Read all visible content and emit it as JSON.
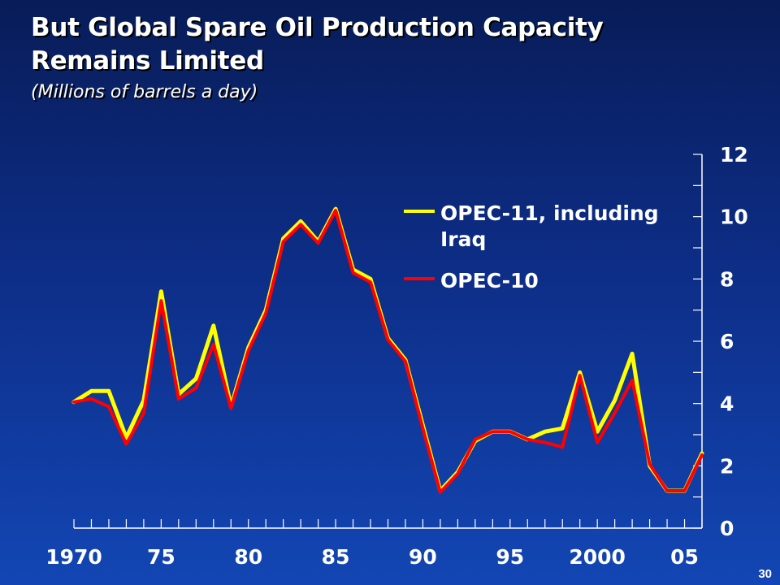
{
  "slide": {
    "title_line1": "But Global Spare Oil Production Capacity",
    "title_line2": "Remains Limited",
    "subtitle": "(Millions of barrels a day)",
    "page_number": "30"
  },
  "chart_data": {
    "type": "line",
    "title": "But Global Spare Oil Production Capacity Remains Limited",
    "subtitle": "(Millions of barrels a day)",
    "x": [
      1970,
      1971,
      1972,
      1973,
      1974,
      1975,
      1976,
      1977,
      1978,
      1979,
      1980,
      1981,
      1982,
      1983,
      1984,
      1985,
      1986,
      1987,
      1988,
      1989,
      1990,
      1991,
      1992,
      1993,
      1994,
      1995,
      1996,
      1997,
      1998,
      1999,
      2000,
      2001,
      2002,
      2003,
      2004,
      2005,
      2006
    ],
    "series": [
      {
        "name": "OPEC-11, including Iraq",
        "color": "#ffff00",
        "values": [
          4.05,
          4.4,
          4.4,
          2.9,
          4.1,
          7.6,
          4.3,
          4.8,
          6.5,
          3.9,
          5.8,
          7.0,
          9.3,
          9.85,
          9.2,
          10.25,
          8.3,
          8.0,
          6.1,
          5.4,
          3.3,
          1.2,
          1.8,
          2.8,
          3.1,
          3.1,
          2.85,
          3.1,
          3.2,
          5.0,
          3.1,
          4.1,
          5.6,
          2.0,
          1.2,
          1.2,
          2.4
        ]
      },
      {
        "name": "OPEC-10",
        "color": "#ff0000",
        "values": [
          4.05,
          4.15,
          3.9,
          2.7,
          3.7,
          7.3,
          4.15,
          4.5,
          5.9,
          3.85,
          5.7,
          6.9,
          9.2,
          9.75,
          9.15,
          10.2,
          8.2,
          7.9,
          6.05,
          5.35,
          3.2,
          1.15,
          1.75,
          2.85,
          3.1,
          3.1,
          2.85,
          2.75,
          2.6,
          4.9,
          2.75,
          3.7,
          4.75,
          2.05,
          1.2,
          1.2,
          2.35
        ]
      }
    ],
    "x_tick_labels": [
      "1970",
      "75",
      "80",
      "85",
      "90",
      "95",
      "2000",
      "05"
    ],
    "x_tick_years": [
      1970,
      1975,
      1980,
      1985,
      1990,
      1995,
      2000,
      2005
    ],
    "y_tick_labels": [
      "0",
      "2",
      "4",
      "6",
      "8",
      "10",
      "12"
    ],
    "y_tick_values": [
      0,
      2,
      4,
      6,
      8,
      10,
      12
    ],
    "ylim": [
      0,
      12
    ],
    "xlim": [
      1970,
      2006
    ],
    "xlabel": "",
    "ylabel": "",
    "y_axis_side": "right",
    "grid": false,
    "legend_placement": "top-center",
    "legend": [
      {
        "label_line1": "OPEC-11, including",
        "label_line2": "Iraq",
        "color": "#ffff00"
      },
      {
        "label_line1": "OPEC-10",
        "label_line2": "",
        "color": "#ff0000"
      }
    ]
  }
}
